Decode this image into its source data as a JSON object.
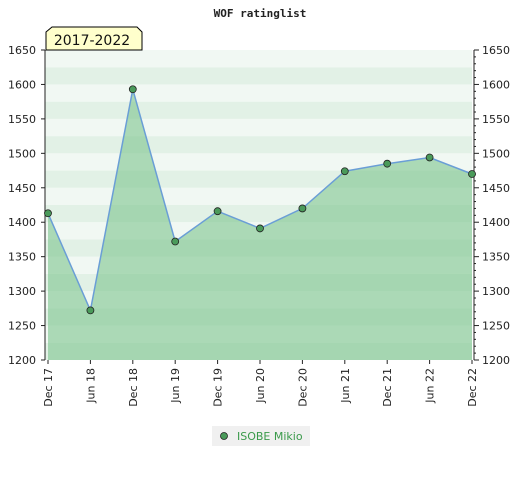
{
  "chart_data": {
    "type": "area",
    "title": "WOF ratinglist",
    "period_badge": "2017-2022",
    "categories": [
      "Dec 17",
      "Jun 18",
      "Dec 18",
      "Jun 19",
      "Dec 19",
      "Jun 20",
      "Dec 20",
      "Jun 21",
      "Dec 21",
      "Jun 22",
      "Dec 22"
    ],
    "series": [
      {
        "name": "ISOBE Mikio",
        "values": [
          1413,
          1272,
          1593,
          1372,
          1416,
          1391,
          1420,
          1474,
          1485,
          1494,
          1470
        ]
      }
    ],
    "ylim": [
      1200,
      1650
    ],
    "yticks": [
      1200,
      1250,
      1300,
      1350,
      1400,
      1450,
      1500,
      1550,
      1600,
      1650
    ],
    "grid": true,
    "legend_position": "bottom-center",
    "colors": {
      "line": "#6a9ed6",
      "area": "#7dc48e",
      "marker": "#4a9a5a",
      "badge_bg": "#ffffcc",
      "legend_text": "#3a9a4a"
    }
  }
}
